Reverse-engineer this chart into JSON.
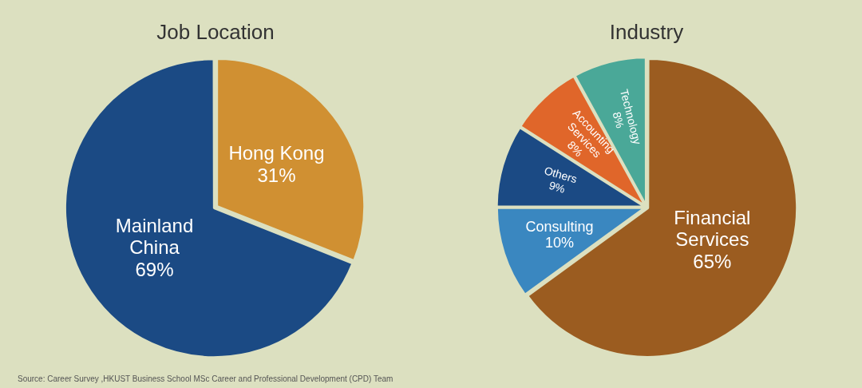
{
  "chart_data": [
    {
      "type": "pie",
      "title": "Job Location",
      "categories": [
        "Hong Kong",
        "Mainland China"
      ],
      "values": [
        31,
        69
      ],
      "colors": [
        "#d09032",
        "#1b4a84"
      ],
      "value_labels": [
        "31%",
        "69%"
      ],
      "legend": false,
      "annotations": [
        "Source:  Career Survey ,HKUST Business School MSc Career and Professional Development (CPD) Team"
      ]
    },
    {
      "type": "pie",
      "title": "Industry",
      "categories": [
        "Financial Services",
        "Consulting",
        "Others",
        "Accounting Services",
        "Technology"
      ],
      "values": [
        65,
        10,
        9,
        8,
        8
      ],
      "colors": [
        "#9b5c20",
        "#3a87c0",
        "#1b4a84",
        "#e0662a",
        "#4aa898"
      ],
      "value_labels": [
        "65%",
        "10%",
        "9%",
        "8%",
        "8%"
      ],
      "legend": false
    }
  ]
}
